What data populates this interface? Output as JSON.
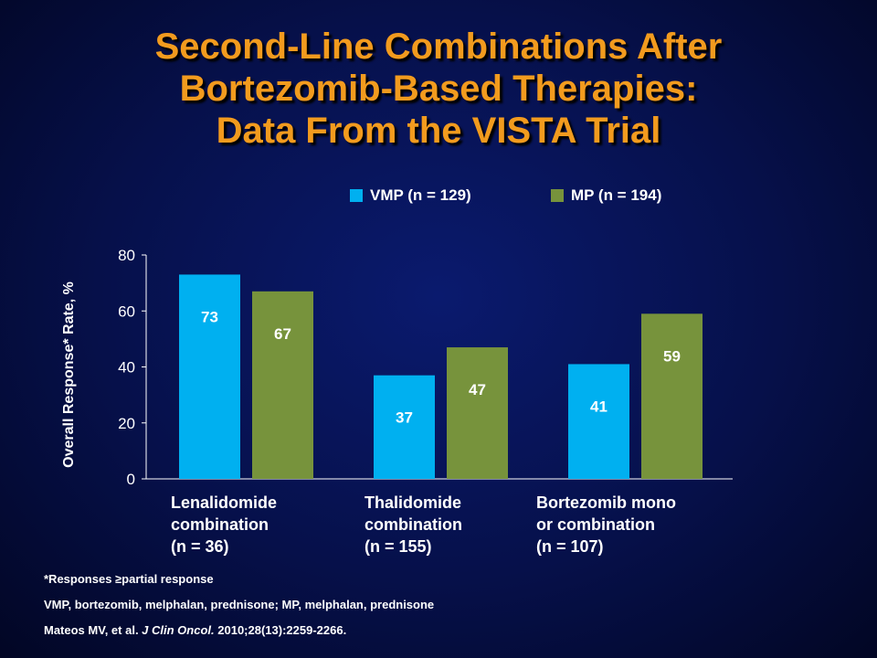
{
  "title": {
    "line1": "Second-Line Combinations After",
    "line2": "Bortezomib-Based Therapies:",
    "line3": "Data From the VISTA Trial"
  },
  "colors": {
    "vmp": "#00b0f0",
    "mp": "#77933c",
    "title": "#f29b1e"
  },
  "chart_data": {
    "type": "bar",
    "ylabel": "Overall Response* Rate, %",
    "ylim": [
      0,
      80
    ],
    "yticks": [
      "0",
      "20",
      "40",
      "60",
      "80"
    ],
    "categories": [
      "Lenalidomide combination (n = 36)",
      "Thalidomide combination (n = 155)",
      "Bortezomib mono or combination (n = 107)"
    ],
    "category_lines": [
      [
        "Lenalidomide",
        "combination",
        "(n = 36)"
      ],
      [
        "Thalidomide",
        "combination",
        "(n = 155)"
      ],
      [
        "Bortezomib mono",
        "or combination",
        "(n = 107)"
      ]
    ],
    "series": [
      {
        "name": "VMP (n = 129)",
        "values": [
          73,
          37,
          41
        ]
      },
      {
        "name": "MP (n = 194)",
        "values": [
          67,
          47,
          59
        ]
      }
    ],
    "legend_position": "top-right",
    "grid": false
  },
  "footnotes": {
    "asterisk": "*Responses ≥partial response",
    "abbrev": "VMP, bortezomib, melphalan, prednisone; MP, melphalan, prednisone",
    "ref_pre": "Mateos MV, et al. ",
    "ref_journal": "J Clin Oncol.",
    "ref_post": " 2010;28(13):2259-2266."
  }
}
